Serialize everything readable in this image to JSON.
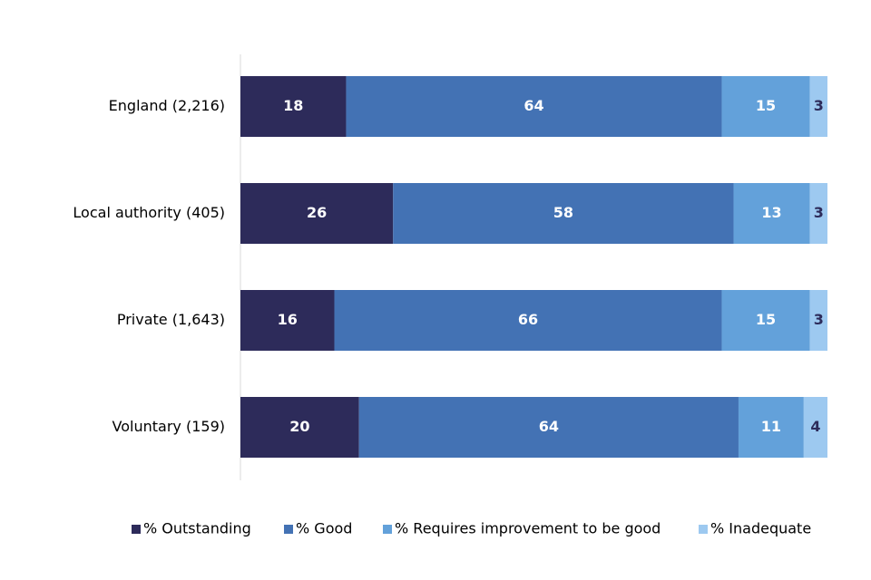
{
  "chart_data": {
    "type": "bar",
    "orientation": "horizontal",
    "stacked": true,
    "title": "",
    "xlabel": "",
    "ylabel": "",
    "xlim": [
      0,
      100
    ],
    "grid": false,
    "legend_position": "bottom",
    "categories": [
      "England (2,216)",
      "Local authority (405)",
      "Private (1,643)",
      "Voluntary (159)"
    ],
    "series": [
      {
        "name": "% Outstanding",
        "color": "#2d2b5a",
        "label_color": "#ffffff",
        "values": [
          18,
          26,
          16,
          20
        ]
      },
      {
        "name": "% Good",
        "color": "#4372b4",
        "label_color": "#ffffff",
        "values": [
          64,
          58,
          66,
          64
        ]
      },
      {
        "name": "% Requires improvement to be good",
        "color": "#63a1da",
        "label_color": "#ffffff",
        "values": [
          15,
          13,
          15,
          11
        ]
      },
      {
        "name": "% Inadequate",
        "color": "#9dc9f0",
        "label_color": "#2d2b5a",
        "values": [
          3,
          3,
          3,
          4
        ]
      }
    ]
  }
}
